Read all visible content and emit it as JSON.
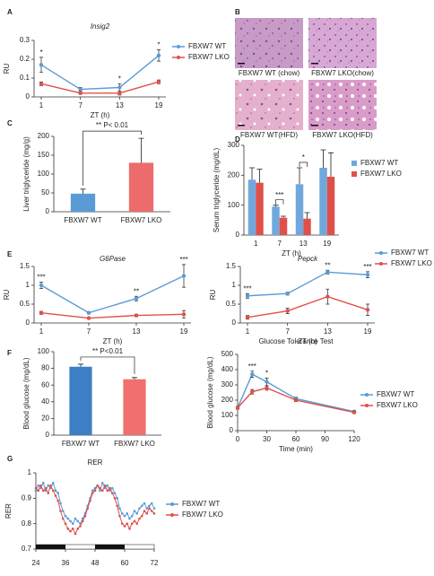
{
  "chart_data": [
    {
      "type": "line",
      "panel": "A",
      "title": "Insig2",
      "ylabel": "RU",
      "xlabel": "ZT (h)",
      "categories": [
        "1",
        "7",
        "13",
        "19"
      ],
      "ylim": [
        0,
        0.3
      ],
      "yticks": [
        0,
        0.1,
        0.2,
        0.3
      ],
      "series": [
        {
          "name": "FBXW7 WT",
          "color": "#5b9bd5",
          "values": [
            0.17,
            0.04,
            0.05,
            0.22
          ],
          "errors": [
            0.04,
            0.01,
            0.02,
            0.03
          ],
          "annotations": [
            "*",
            null,
            "*",
            "*"
          ]
        },
        {
          "name": "FBXW7 LKO",
          "color": "#e0504a",
          "values": [
            0.07,
            0.02,
            0.02,
            0.08
          ],
          "errors": [
            0.01,
            0.005,
            0.01,
            0.01
          ]
        }
      ]
    },
    {
      "type": "images",
      "panel": "B",
      "captions": [
        "FBXW7 WT (chow)",
        "FBXW7 LKO(chow)",
        "FBXW7 WT(HFD)",
        "FBXW7 LKO(HFD)"
      ]
    },
    {
      "type": "bar",
      "panel": "C",
      "ylabel": "Liver triglyceride (mg/g)",
      "categories": [
        "FBXW7 WT",
        "FBXW7 LKO"
      ],
      "values": [
        48,
        130
      ],
      "errors": [
        12,
        65
      ],
      "colors": [
        "#5b9bd5",
        "#ec6b6b"
      ],
      "ylim": [
        0,
        200
      ],
      "yticks": [
        0,
        50,
        100,
        150,
        200
      ],
      "significance": "** P< 0.01"
    },
    {
      "type": "bar",
      "panel": "D",
      "ylabel": "Serum triglyceride (mg/dL)",
      "xlabel": "ZT (h)",
      "categories": [
        "1",
        "7",
        "13",
        "19"
      ],
      "ylim": [
        0,
        300
      ],
      "yticks": [
        0,
        100,
        200,
        300
      ],
      "annotations": [
        null,
        "***",
        "*",
        null
      ],
      "series": [
        {
          "name": "FBXW7 WT",
          "color": "#6fa8dc",
          "values": [
            185,
            95,
            170,
            225
          ],
          "errors": [
            40,
            5,
            55,
            60
          ]
        },
        {
          "name": "FBXW7 LKO",
          "color": "#e0504a",
          "values": [
            175,
            58,
            55,
            195
          ],
          "errors": [
            45,
            5,
            20,
            80
          ]
        }
      ]
    },
    {
      "type": "line",
      "panel": "E",
      "title": "G6Pase",
      "ylabel": "RU",
      "xlabel": "ZT (h)",
      "categories": [
        "1",
        "7",
        "13",
        "19"
      ],
      "ylim": [
        0,
        1.5
      ],
      "yticks": [
        0,
        0.5,
        1,
        1.5
      ],
      "series": [
        {
          "name": "FBXW7 WT",
          "color": "#5b9bd5",
          "values": [
            1.0,
            0.27,
            0.65,
            1.25
          ],
          "errors": [
            0.08,
            0.03,
            0.06,
            0.3
          ],
          "annotations": [
            "***",
            null,
            "**",
            "***"
          ]
        },
        {
          "name": "FBXW7 LKO",
          "color": "#e0504a",
          "values": [
            0.27,
            0.13,
            0.2,
            0.23
          ],
          "errors": [
            0.04,
            0.02,
            0.03,
            0.1
          ]
        }
      ]
    },
    {
      "type": "line",
      "title": "Pepck",
      "ylabel": "RU",
      "xlabel": "ZT (h)",
      "categories": [
        "1",
        "7",
        "13",
        "19"
      ],
      "ylim": [
        0,
        1.5
      ],
      "yticks": [
        0,
        0.5,
        1,
        1.5
      ],
      "series": [
        {
          "name": "FBXW7 WT",
          "color": "#5b9bd5",
          "values": [
            0.72,
            0.78,
            1.35,
            1.28
          ],
          "errors": [
            0.06,
            0.04,
            0.05,
            0.08
          ],
          "annotations": [
            "***",
            null,
            "**",
            "***"
          ]
        },
        {
          "name": "FBXW7 LKO",
          "color": "#e0504a",
          "values": [
            0.15,
            0.32,
            0.7,
            0.35
          ],
          "errors": [
            0.05,
            0.07,
            0.2,
            0.15
          ]
        }
      ]
    },
    {
      "type": "bar",
      "panel": "F",
      "ylabel": "Blood glucose (mg/dL)",
      "categories": [
        "FBXW7 WT",
        "FBXW7 LKO"
      ],
      "values": [
        82,
        67
      ],
      "errors": [
        3,
        2
      ],
      "colors": [
        "#3d7fc4",
        "#f07070"
      ],
      "ylim": [
        0,
        100
      ],
      "yticks": [
        0,
        20,
        40,
        60,
        80,
        100
      ],
      "significance": "** P<0.01"
    },
    {
      "type": "line",
      "title": "Glucose Tolerance Test",
      "ylabel": "Blood glucose (mg/dL)",
      "xlabel": "Time (min)",
      "x": [
        0,
        15,
        30,
        60,
        120
      ],
      "xlim": [
        0,
        120
      ],
      "xticks": [
        0,
        30,
        60,
        90,
        120
      ],
      "ylim": [
        0,
        500
      ],
      "yticks": [
        0,
        100,
        200,
        300,
        400,
        500
      ],
      "series": [
        {
          "name": "FBXW7 WT",
          "color": "#5b9bd5",
          "values": [
            150,
            370,
            320,
            210,
            125
          ],
          "errors": [
            10,
            20,
            25,
            10,
            8
          ],
          "annotations": [
            null,
            "***",
            "*",
            null,
            null
          ]
        },
        {
          "name": "FBXW7 LKO",
          "color": "#e0504a",
          "values": [
            150,
            255,
            280,
            200,
            120
          ],
          "errors": [
            10,
            15,
            15,
            10,
            8
          ]
        }
      ]
    },
    {
      "type": "line",
      "panel": "G",
      "title": "RER",
      "ylabel": "RER",
      "xlim": [
        24,
        72
      ],
      "xticks": [
        24,
        36,
        48,
        60,
        72
      ],
      "ylim": [
        0.7,
        1.0
      ],
      "yticks": [
        0.7,
        0.8,
        0.9,
        1
      ],
      "dark_periods": [
        [
          24,
          36
        ],
        [
          48,
          60
        ]
      ],
      "x": [
        24,
        25,
        26,
        27,
        28,
        29,
        30,
        31,
        32,
        33,
        34,
        35,
        36,
        37,
        38,
        39,
        40,
        41,
        42,
        43,
        44,
        45,
        46,
        47,
        48,
        49,
        50,
        51,
        52,
        53,
        54,
        55,
        56,
        57,
        58,
        59,
        60,
        61,
        62,
        63,
        64,
        65,
        66,
        67,
        68,
        69,
        70,
        71,
        72
      ],
      "series": [
        {
          "name": "FBXW7 WT",
          "color": "#5b9bd5",
          "values": [
            0.93,
            0.95,
            0.94,
            0.96,
            0.93,
            0.95,
            0.94,
            0.96,
            0.93,
            0.92,
            0.88,
            0.85,
            0.83,
            0.82,
            0.81,
            0.8,
            0.82,
            0.81,
            0.8,
            0.82,
            0.84,
            0.87,
            0.9,
            0.93,
            0.94,
            0.95,
            0.93,
            0.96,
            0.94,
            0.95,
            0.93,
            0.94,
            0.92,
            0.9,
            0.86,
            0.84,
            0.83,
            0.84,
            0.82,
            0.83,
            0.85,
            0.84,
            0.86,
            0.87,
            0.88,
            0.86,
            0.87,
            0.88,
            0.86
          ]
        },
        {
          "name": "FBXW7 LKO",
          "color": "#e0504a",
          "values": [
            0.94,
            0.93,
            0.95,
            0.93,
            0.94,
            0.92,
            0.95,
            0.93,
            0.91,
            0.89,
            0.85,
            0.82,
            0.8,
            0.78,
            0.77,
            0.78,
            0.76,
            0.78,
            0.79,
            0.81,
            0.83,
            0.86,
            0.89,
            0.92,
            0.93,
            0.95,
            0.94,
            0.93,
            0.95,
            0.93,
            0.94,
            0.92,
            0.9,
            0.87,
            0.83,
            0.8,
            0.79,
            0.8,
            0.78,
            0.8,
            0.81,
            0.8,
            0.82,
            0.83,
            0.85,
            0.84,
            0.86,
            0.85,
            0.84
          ]
        }
      ]
    }
  ]
}
